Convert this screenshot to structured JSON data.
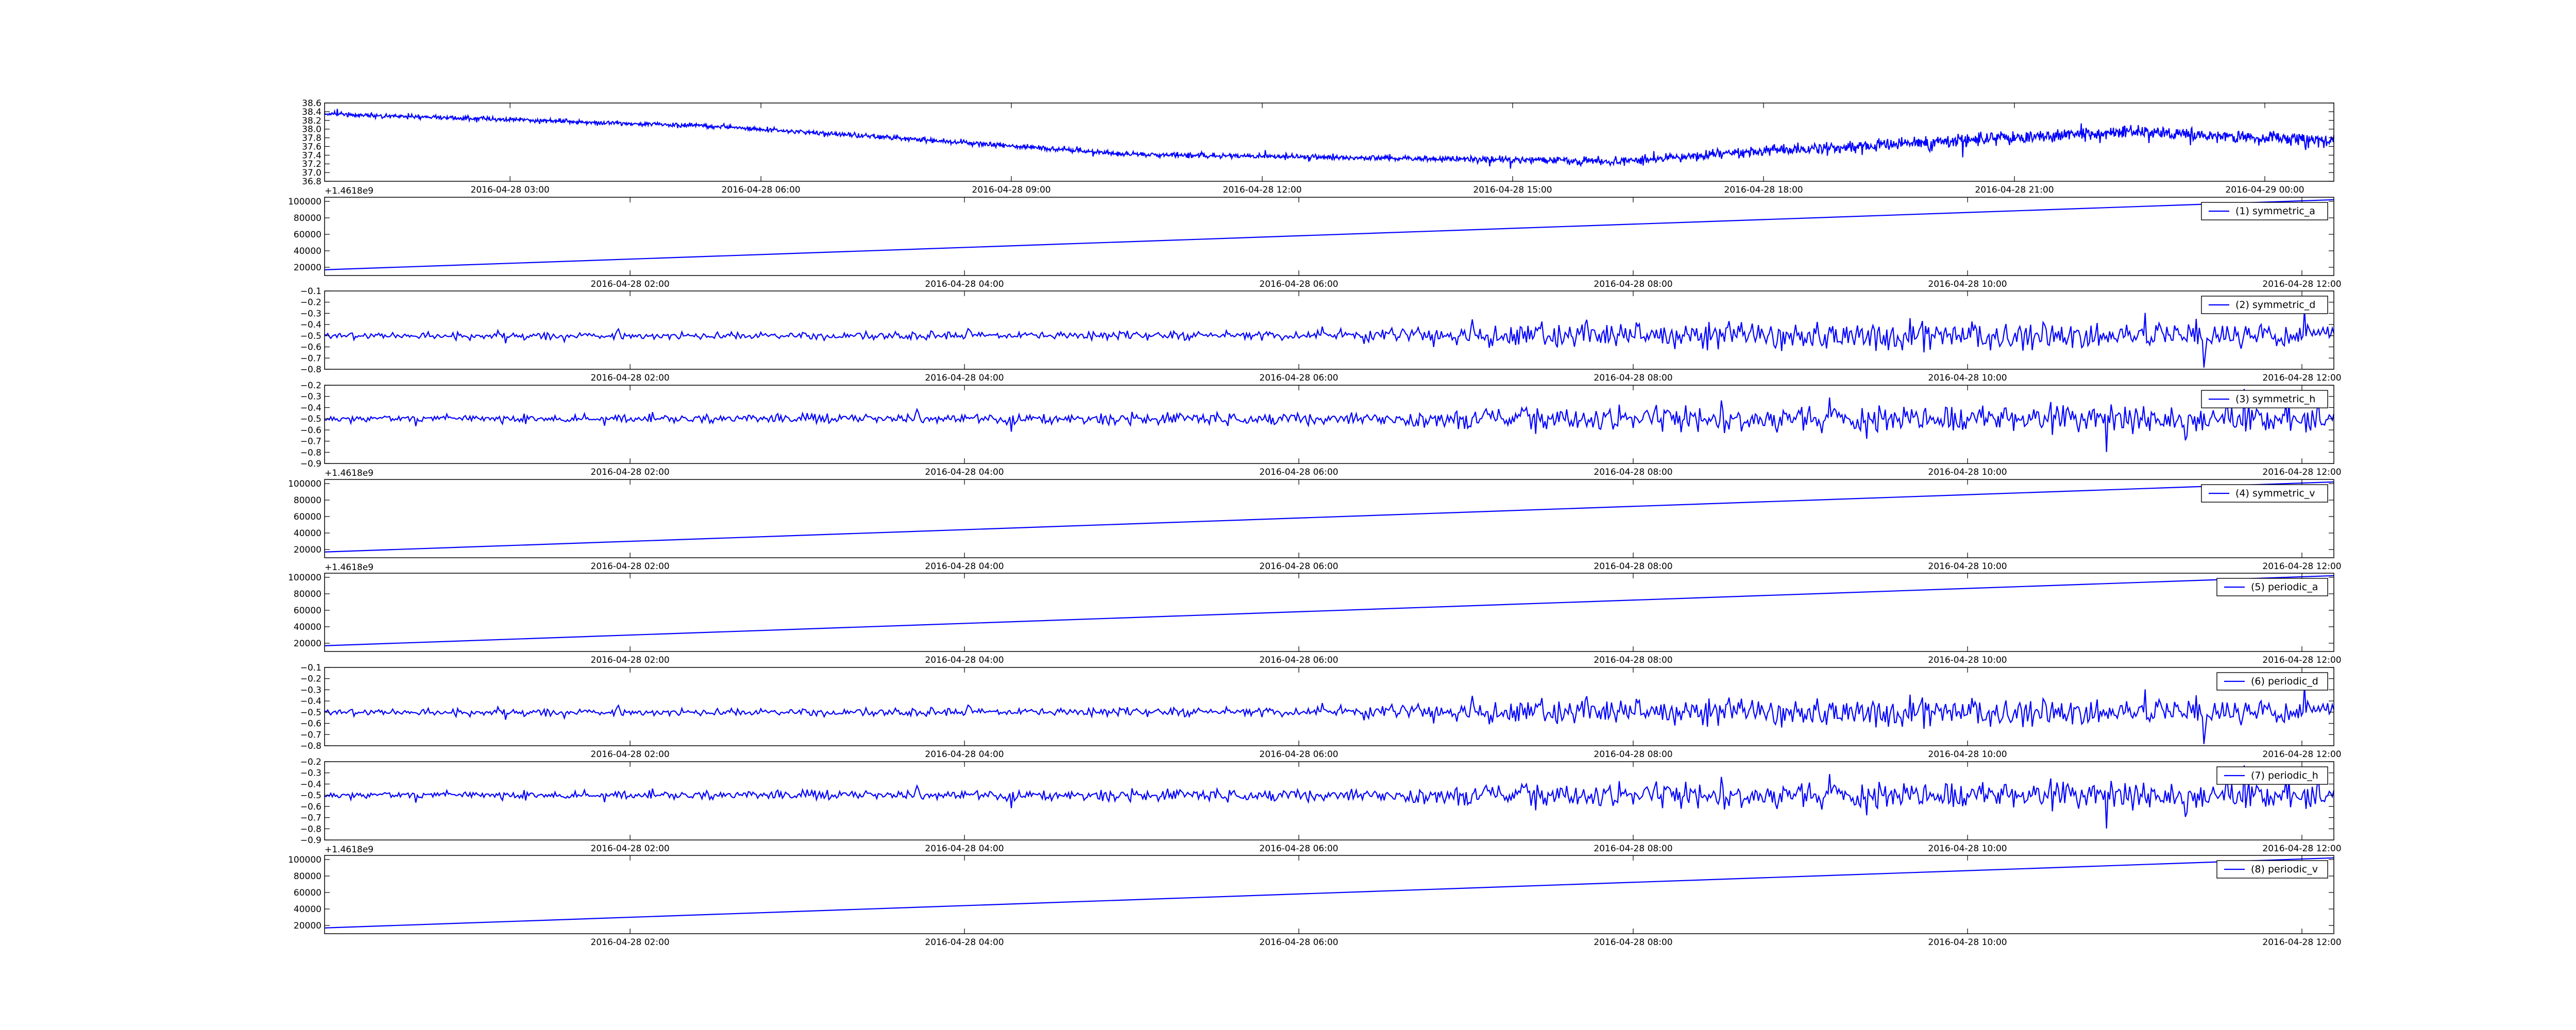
{
  "chart_data": [
    {
      "type": "line",
      "title": "",
      "xlabel": "",
      "ylabel": "",
      "ylim": [
        36.8,
        38.6
      ],
      "yticks": [
        "36.8",
        "37.0",
        "37.2",
        "37.4",
        "37.6",
        "37.8",
        "38.0",
        "38.2",
        "38.4",
        "38.6"
      ],
      "xticks": [
        "2016-04-28 03:00",
        "2016-04-28 06:00",
        "2016-04-28 09:00",
        "2016-04-28 12:00",
        "2016-04-28 15:00",
        "2016-04-28 18:00",
        "2016-04-28 21:00",
        "2016-04-29 00:00"
      ],
      "offset_label": "+1.4618e9",
      "legend": "",
      "legend_position": "",
      "grid": false,
      "color": "#0000ff",
      "trend": [
        [
          0,
          38.35
        ],
        [
          0.12,
          38.18
        ],
        [
          0.2,
          38.05
        ],
        [
          0.3,
          37.75
        ],
        [
          0.4,
          37.42
        ],
        [
          0.5,
          37.35
        ],
        [
          0.58,
          37.3
        ],
        [
          0.64,
          37.25
        ],
        [
          0.72,
          37.5
        ],
        [
          0.8,
          37.7
        ],
        [
          0.9,
          37.95
        ],
        [
          1.0,
          37.72
        ]
      ],
      "noise": [
        [
          0,
          0.05
        ],
        [
          0.55,
          0.06
        ],
        [
          0.65,
          0.1
        ],
        [
          0.8,
          0.14
        ],
        [
          1.0,
          0.15
        ]
      ]
    },
    {
      "type": "line",
      "title": "",
      "xlabel": "",
      "ylabel": "",
      "ylim": [
        10000,
        105000
      ],
      "yticks": [
        "20000",
        "40000",
        "60000",
        "80000",
        "100000"
      ],
      "xticks": [
        "2016-04-28 02:00",
        "2016-04-28 04:00",
        "2016-04-28 06:00",
        "2016-04-28 08:00",
        "2016-04-28 10:00",
        "2016-04-28 12:00"
      ],
      "offset_label": "",
      "legend": "(1) symmetric_a",
      "legend_position": "top-right",
      "grid": false,
      "color": "#0000ff",
      "trend": [
        [
          0,
          17000
        ],
        [
          1,
          102000
        ]
      ],
      "noise": [
        [
          0,
          0
        ],
        [
          1,
          0
        ]
      ]
    },
    {
      "type": "line",
      "title": "",
      "xlabel": "",
      "ylabel": "",
      "ylim": [
        -0.8,
        -0.1
      ],
      "yticks": [
        "−0.8",
        "−0.7",
        "−0.6",
        "−0.5",
        "−0.4",
        "−0.3",
        "−0.2",
        "−0.1"
      ],
      "xticks": [
        "2016-04-28 02:00",
        "2016-04-28 04:00",
        "2016-04-28 06:00",
        "2016-04-28 08:00",
        "2016-04-28 10:00",
        "2016-04-28 12:00"
      ],
      "offset_label": "",
      "legend": "(2) symmetric_d",
      "legend_position": "top-right",
      "grid": false,
      "color": "#0000ff",
      "trend": [
        [
          0,
          -0.5
        ],
        [
          1,
          -0.5
        ]
      ],
      "noise": [
        [
          0,
          0.03
        ],
        [
          0.5,
          0.04
        ],
        [
          0.6,
          0.1
        ],
        [
          0.85,
          0.13
        ],
        [
          1.0,
          0.12
        ]
      ]
    },
    {
      "type": "line",
      "title": "",
      "xlabel": "",
      "ylabel": "",
      "ylim": [
        -0.9,
        -0.2
      ],
      "yticks": [
        "−0.9",
        "−0.8",
        "−0.7",
        "−0.6",
        "−0.5",
        "−0.4",
        "−0.3",
        "−0.2"
      ],
      "xticks": [
        "2016-04-28 02:00",
        "2016-04-28 04:00",
        "2016-04-28 06:00",
        "2016-04-28 08:00",
        "2016-04-28 10:00",
        "2016-04-28 12:00"
      ],
      "offset_label": "+1.4618e9",
      "legend": "(3) symmetric_h",
      "legend_position": "top-right",
      "grid": false,
      "color": "#0000ff",
      "trend": [
        [
          0,
          -0.5
        ],
        [
          1,
          -0.5
        ]
      ],
      "noise": [
        [
          0,
          0.03
        ],
        [
          0.5,
          0.05
        ],
        [
          0.6,
          0.1
        ],
        [
          0.85,
          0.13
        ],
        [
          1.0,
          0.12
        ]
      ]
    },
    {
      "type": "line",
      "title": "",
      "xlabel": "",
      "ylabel": "",
      "ylim": [
        10000,
        105000
      ],
      "yticks": [
        "20000",
        "40000",
        "60000",
        "80000",
        "100000"
      ],
      "xticks": [
        "2016-04-28 02:00",
        "2016-04-28 04:00",
        "2016-04-28 06:00",
        "2016-04-28 08:00",
        "2016-04-28 10:00",
        "2016-04-28 12:00"
      ],
      "offset_label": "+1.4618e9",
      "legend": "(4) symmetric_v",
      "legend_position": "top-right",
      "grid": false,
      "color": "#0000ff",
      "trend": [
        [
          0,
          17000
        ],
        [
          1,
          102000
        ]
      ],
      "noise": [
        [
          0,
          0
        ],
        [
          1,
          0
        ]
      ]
    },
    {
      "type": "line",
      "title": "",
      "xlabel": "",
      "ylabel": "",
      "ylim": [
        10000,
        105000
      ],
      "yticks": [
        "20000",
        "40000",
        "60000",
        "80000",
        "100000"
      ],
      "xticks": [
        "2016-04-28 02:00",
        "2016-04-28 04:00",
        "2016-04-28 06:00",
        "2016-04-28 08:00",
        "2016-04-28 10:00",
        "2016-04-28 12:00"
      ],
      "offset_label": "",
      "legend": "(5) periodic_a",
      "legend_position": "top-right",
      "grid": false,
      "color": "#0000ff",
      "trend": [
        [
          0,
          17000
        ],
        [
          1,
          102000
        ]
      ],
      "noise": [
        [
          0,
          0
        ],
        [
          1,
          0
        ]
      ]
    },
    {
      "type": "line",
      "title": "",
      "xlabel": "",
      "ylabel": "",
      "ylim": [
        -0.8,
        -0.1
      ],
      "yticks": [
        "−0.8",
        "−0.7",
        "−0.6",
        "−0.5",
        "−0.4",
        "−0.3",
        "−0.2",
        "−0.1"
      ],
      "xticks": [
        "2016-04-28 02:00",
        "2016-04-28 04:00",
        "2016-04-28 06:00",
        "2016-04-28 08:00",
        "2016-04-28 10:00",
        "2016-04-28 12:00"
      ],
      "offset_label": "",
      "legend": "(6) periodic_d",
      "legend_position": "top-right",
      "grid": false,
      "color": "#0000ff",
      "trend": [
        [
          0,
          -0.5
        ],
        [
          1,
          -0.5
        ]
      ],
      "noise": [
        [
          0,
          0.03
        ],
        [
          0.5,
          0.04
        ],
        [
          0.6,
          0.1
        ],
        [
          0.85,
          0.13
        ],
        [
          1.0,
          0.12
        ]
      ]
    },
    {
      "type": "line",
      "title": "",
      "xlabel": "",
      "ylabel": "",
      "ylim": [
        -0.9,
        -0.2
      ],
      "yticks": [
        "−0.9",
        "−0.8",
        "−0.7",
        "−0.6",
        "−0.5",
        "−0.4",
        "−0.3",
        "−0.2"
      ],
      "xticks": [
        "2016-04-28 02:00",
        "2016-04-28 04:00",
        "2016-04-28 06:00",
        "2016-04-28 08:00",
        "2016-04-28 10:00",
        "2016-04-28 12:00"
      ],
      "offset_label": "+1.4618e9",
      "legend": "(7) periodic_h",
      "legend_position": "top-right",
      "grid": false,
      "color": "#0000ff",
      "trend": [
        [
          0,
          -0.5
        ],
        [
          1,
          -0.5
        ]
      ],
      "noise": [
        [
          0,
          0.03
        ],
        [
          0.5,
          0.05
        ],
        [
          0.6,
          0.1
        ],
        [
          0.85,
          0.13
        ],
        [
          1.0,
          0.12
        ]
      ]
    },
    {
      "type": "line",
      "title": "",
      "xlabel": "",
      "ylabel": "",
      "ylim": [
        10000,
        105000
      ],
      "yticks": [
        "20000",
        "40000",
        "60000",
        "80000",
        "100000"
      ],
      "xticks": [
        "2016-04-28 02:00",
        "2016-04-28 04:00",
        "2016-04-28 06:00",
        "2016-04-28 08:00",
        "2016-04-28 10:00",
        "2016-04-28 12:00"
      ],
      "offset_label": "",
      "legend": "(8) periodic_v",
      "legend_position": "top-right",
      "grid": false,
      "color": "#0000ff",
      "trend": [
        [
          0,
          17000
        ],
        [
          1,
          102000
        ]
      ],
      "noise": [
        [
          0,
          0
        ],
        [
          1,
          0
        ]
      ]
    }
  ]
}
